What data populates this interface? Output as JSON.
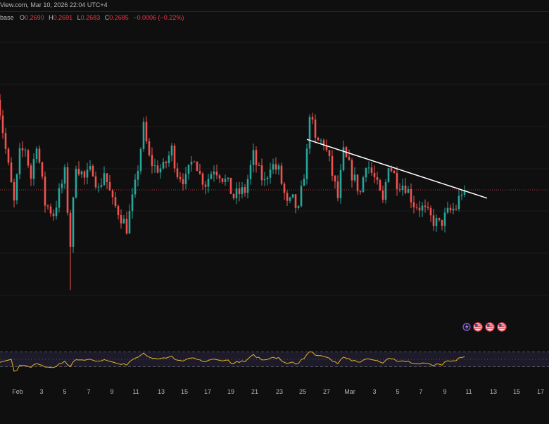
{
  "header": {
    "source_date": "View.com, Mar 10, 2026 22:04 UTC+4"
  },
  "ohlc": {
    "symbol_tail": "base",
    "o_label": "O",
    "o": "0.2690",
    "h_label": "H",
    "h": "0.2691",
    "l_label": "L",
    "l": "0.2683",
    "c_label": "C",
    "c": "0.2685",
    "change": "−0.0006 (−0.22%)"
  },
  "colors": {
    "bg": "#0f0f0f",
    "up": "#26a69a",
    "down": "#ef5350",
    "rsi": "#e6b422",
    "trendline": "#ffffff",
    "rsi_band": "#2a2440"
  },
  "icons": [
    "lightning-event-icon",
    "us-flag-event-icon",
    "us-flag-event-icon",
    "us-flag-event-icon"
  ],
  "chart_data": {
    "type": "candlestick",
    "x_ticks": [
      "Feb",
      "3",
      "5",
      "7",
      "9",
      "11",
      "13",
      "15",
      "17",
      "19",
      "21",
      "23",
      "25",
      "27",
      "Mar",
      "3",
      "5",
      "7",
      "9",
      "11",
      "13",
      "15",
      "17"
    ],
    "price_anchors": [
      {
        "t": 0,
        "v": 0.345
      },
      {
        "t": 3,
        "v": 0.3
      },
      {
        "t": 6,
        "v": 0.258
      },
      {
        "t": 8,
        "v": 0.296
      },
      {
        "t": 10,
        "v": 0.301
      },
      {
        "t": 12,
        "v": 0.278
      },
      {
        "t": 14,
        "v": 0.306
      },
      {
        "t": 17,
        "v": 0.258
      },
      {
        "t": 20,
        "v": 0.25
      },
      {
        "t": 24,
        "v": 0.281
      },
      {
        "t": 26,
        "v": 0.226
      },
      {
        "t": 28,
        "v": 0.29
      },
      {
        "t": 31,
        "v": 0.277
      },
      {
        "t": 34,
        "v": 0.285
      },
      {
        "t": 36,
        "v": 0.268
      },
      {
        "t": 38,
        "v": 0.283
      },
      {
        "t": 41,
        "v": 0.258
      },
      {
        "t": 43,
        "v": 0.252
      },
      {
        "t": 46,
        "v": 0.239
      },
      {
        "t": 49,
        "v": 0.271
      },
      {
        "t": 52,
        "v": 0.317
      },
      {
        "t": 54,
        "v": 0.293
      },
      {
        "t": 56,
        "v": 0.286
      },
      {
        "t": 59,
        "v": 0.285
      },
      {
        "t": 62,
        "v": 0.3
      },
      {
        "t": 64,
        "v": 0.282
      },
      {
        "t": 67,
        "v": 0.276
      },
      {
        "t": 70,
        "v": 0.296
      },
      {
        "t": 72,
        "v": 0.28
      },
      {
        "t": 74,
        "v": 0.274
      },
      {
        "t": 77,
        "v": 0.286
      },
      {
        "t": 79,
        "v": 0.282
      },
      {
        "t": 82,
        "v": 0.272
      },
      {
        "t": 84,
        "v": 0.263
      },
      {
        "t": 86,
        "v": 0.266
      },
      {
        "t": 88,
        "v": 0.268
      },
      {
        "t": 91,
        "v": 0.295
      },
      {
        "t": 93,
        "v": 0.282
      },
      {
        "t": 95,
        "v": 0.274
      },
      {
        "t": 97,
        "v": 0.289
      },
      {
        "t": 100,
        "v": 0.283
      },
      {
        "t": 103,
        "v": 0.256
      },
      {
        "t": 105,
        "v": 0.26
      },
      {
        "t": 107,
        "v": 0.251
      },
      {
        "t": 110,
        "v": 0.297
      },
      {
        "t": 111,
        "v": 0.33
      },
      {
        "t": 113,
        "v": 0.306
      },
      {
        "t": 116,
        "v": 0.306
      },
      {
        "t": 118,
        "v": 0.29
      },
      {
        "t": 121,
        "v": 0.262
      },
      {
        "t": 123,
        "v": 0.297
      },
      {
        "t": 126,
        "v": 0.281
      },
      {
        "t": 129,
        "v": 0.266
      },
      {
        "t": 131,
        "v": 0.291
      },
      {
        "t": 134,
        "v": 0.277
      },
      {
        "t": 137,
        "v": 0.258
      },
      {
        "t": 139,
        "v": 0.29
      },
      {
        "t": 142,
        "v": 0.275
      },
      {
        "t": 145,
        "v": 0.272
      },
      {
        "t": 148,
        "v": 0.258
      },
      {
        "t": 151,
        "v": 0.254
      },
      {
        "t": 154,
        "v": 0.246
      },
      {
        "t": 157,
        "v": 0.241
      },
      {
        "t": 160,
        "v": 0.25
      },
      {
        "t": 163,
        "v": 0.255
      },
      {
        "t": 166,
        "v": 0.274
      }
    ],
    "last_price": 0.2685,
    "y_range": [
      0.175,
      0.395
    ],
    "trendline": {
      "from": {
        "t": 110,
        "v": 0.308
      },
      "to": {
        "t": 174,
        "v": 0.262
      }
    },
    "rsi": {
      "levels": [
        70,
        50,
        30
      ],
      "range": [
        18,
        82
      ]
    }
  }
}
